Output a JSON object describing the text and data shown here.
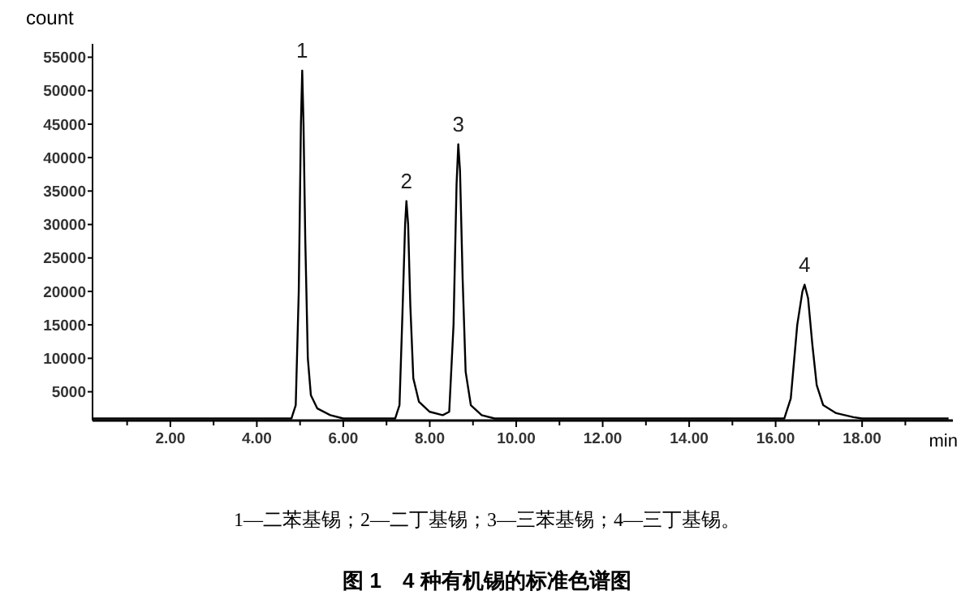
{
  "chart_data": {
    "type": "line",
    "title": "图 1　4 种有机锡的标准色谱图",
    "xlabel": "min",
    "ylabel": "count",
    "x": [
      0.2,
      4.8,
      4.9,
      4.97,
      5.02,
      5.05,
      5.08,
      5.12,
      5.18,
      5.25,
      5.4,
      5.7,
      6.0,
      7.2,
      7.3,
      7.37,
      7.43,
      7.46,
      7.5,
      7.55,
      7.62,
      7.75,
      8.0,
      8.3,
      8.45,
      8.55,
      8.62,
      8.66,
      8.7,
      8.76,
      8.83,
      8.95,
      9.2,
      9.5,
      16.2,
      16.35,
      16.5,
      16.62,
      16.67,
      16.75,
      16.85,
      16.95,
      17.1,
      17.4,
      17.8,
      18.0,
      20.0
    ],
    "series": [
      {
        "color": "#000000",
        "values": [
          1000,
          1000,
          3000,
          20000,
          45000,
          53000,
          45000,
          28000,
          10000,
          4500,
          2500,
          1500,
          1000,
          1000,
          3000,
          17000,
          30000,
          33500,
          30000,
          18000,
          7000,
          3500,
          2000,
          1500,
          2000,
          15000,
          36000,
          42000,
          38000,
          22000,
          8000,
          3000,
          1500,
          1000,
          1000,
          4000,
          15000,
          20000,
          21000,
          19000,
          12000,
          6000,
          3000,
          1800,
          1200,
          1000,
          1000
        ]
      }
    ],
    "xlim": [
      0.2,
      20.1
    ],
    "ylim": [
      700,
      57000
    ],
    "xticks": [
      {
        "value": 1,
        "label": null
      },
      {
        "value": 2,
        "label": "2.00"
      },
      {
        "value": 3,
        "label": null
      },
      {
        "value": 4,
        "label": "4.00"
      },
      {
        "value": 5,
        "label": null
      },
      {
        "value": 6,
        "label": "6.00"
      },
      {
        "value": 7,
        "label": null
      },
      {
        "value": 8,
        "label": "8.00"
      },
      {
        "value": 9,
        "label": null
      },
      {
        "value": 10,
        "label": "10.00"
      },
      {
        "value": 11,
        "label": null
      },
      {
        "value": 12,
        "label": "12.00"
      },
      {
        "value": 13,
        "label": null
      },
      {
        "value": 14,
        "label": "14.00"
      },
      {
        "value": 15,
        "label": null
      },
      {
        "value": 16,
        "label": "16.00"
      },
      {
        "value": 17,
        "label": null
      },
      {
        "value": 18,
        "label": "18.00"
      },
      {
        "value": 19,
        "label": null
      }
    ],
    "yticks": [
      5000,
      10000,
      15000,
      20000,
      25000,
      30000,
      35000,
      40000,
      45000,
      50000,
      55000
    ],
    "grid": false,
    "marker": "none",
    "line_style": "solid",
    "annotations": [
      {
        "text": "1",
        "x": 5.05,
        "y": 53000
      },
      {
        "text": "2",
        "x": 7.46,
        "y": 33500
      },
      {
        "text": "3",
        "x": 8.66,
        "y": 42000
      },
      {
        "text": "4",
        "x": 16.67,
        "y": 21000
      },
      "1—二苯基锡；2—二丁基锡；3—三苯基锡；4—三丁基锡。"
    ]
  }
}
